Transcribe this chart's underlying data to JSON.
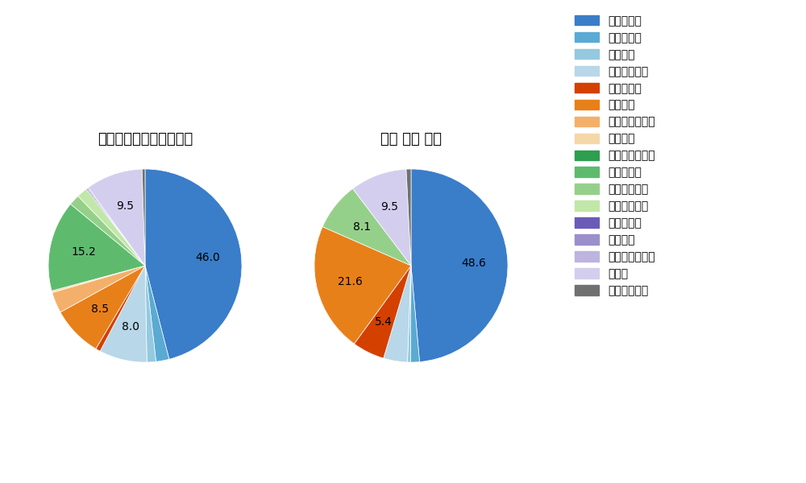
{
  "left_title": "パ・リーグ全プレイヤー",
  "right_title": "田宮 裕消 選手",
  "pitch_types": [
    "ストレート",
    "ツーシーム",
    "シュート",
    "カットボール",
    "スプリット",
    "フォーク",
    "チェンジアップ",
    "シンカー",
    "高速スライダー",
    "スライダー",
    "縦スライダー",
    "パワーカーブ",
    "スクリュー",
    "ナックル",
    "ナックルカーブ",
    "カーブ",
    "スローカーブ"
  ],
  "colors": [
    "#3A7DC9",
    "#5BAAD4",
    "#94C9E0",
    "#B8D7E8",
    "#D44000",
    "#E8801A",
    "#F4B06A",
    "#F5D7A8",
    "#2E9E4F",
    "#5EBB6E",
    "#95D08A",
    "#C1E8A8",
    "#6B5BB8",
    "#9B8FCC",
    "#BDB5E0",
    "#D4CEEE",
    "#707070"
  ],
  "left_values": [
    46.0,
    2.2,
    1.5,
    8.0,
    0.8,
    8.5,
    3.5,
    0.3,
    0.0,
    15.2,
    1.8,
    1.8,
    0.2,
    0.2,
    0.0,
    9.5,
    0.5
  ],
  "right_values": [
    48.6,
    1.5,
    0.5,
    4.0,
    5.4,
    21.6,
    0.0,
    0.0,
    0.0,
    0.0,
    8.1,
    0.0,
    0.0,
    0.0,
    0.0,
    9.5,
    0.8
  ],
  "label_threshold": 5.0,
  "background_color": "#ffffff",
  "font_size_title": 13,
  "font_size_label": 10,
  "font_size_legend": 10
}
